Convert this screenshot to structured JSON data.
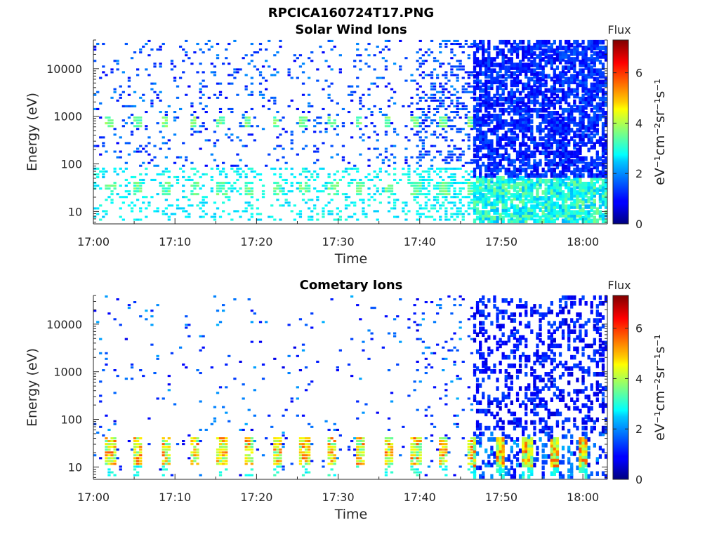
{
  "figure_title": "RPCICA160724T17.PNG",
  "chart_data": [
    {
      "type": "heatmap",
      "title": "Solar Wind Ions",
      "xlabel": "Time",
      "ylabel": "Energy (eV)",
      "x_ticks": [
        "17:00",
        "17:10",
        "17:20",
        "17:30",
        "17:40",
        "17:50",
        "18:00"
      ],
      "x_range": [
        "17:00",
        "18:03"
      ],
      "y_ticks": [
        "10",
        "100",
        "1000",
        "10000"
      ],
      "y_range": [
        5.5,
        40000
      ],
      "y_scale": "log",
      "colorbar": {
        "label": "Flux",
        "unit_label": "eV⁻¹cm⁻²sr⁻¹s⁻¹",
        "ticks": [
          "0",
          "2",
          "4",
          "6"
        ],
        "range": [
          0,
          7.3
        ],
        "colormap": "jet"
      }
    },
    {
      "type": "heatmap",
      "title": "Cometary Ions",
      "xlabel": "Time",
      "ylabel": "Energy (eV)",
      "x_ticks": [
        "17:00",
        "17:10",
        "17:20",
        "17:30",
        "17:40",
        "17:50",
        "18:00"
      ],
      "x_range": [
        "17:00",
        "18:03"
      ],
      "y_ticks": [
        "10",
        "100",
        "1000",
        "10000"
      ],
      "y_range": [
        5.5,
        40000
      ],
      "y_scale": "log",
      "colorbar": {
        "label": "Flux",
        "unit_label": "eV⁻¹cm⁻²sr⁻¹s⁻¹",
        "ticks": [
          "0",
          "2",
          "4",
          "6"
        ],
        "range": [
          0,
          7.3
        ],
        "colormap": "jet"
      }
    }
  ]
}
